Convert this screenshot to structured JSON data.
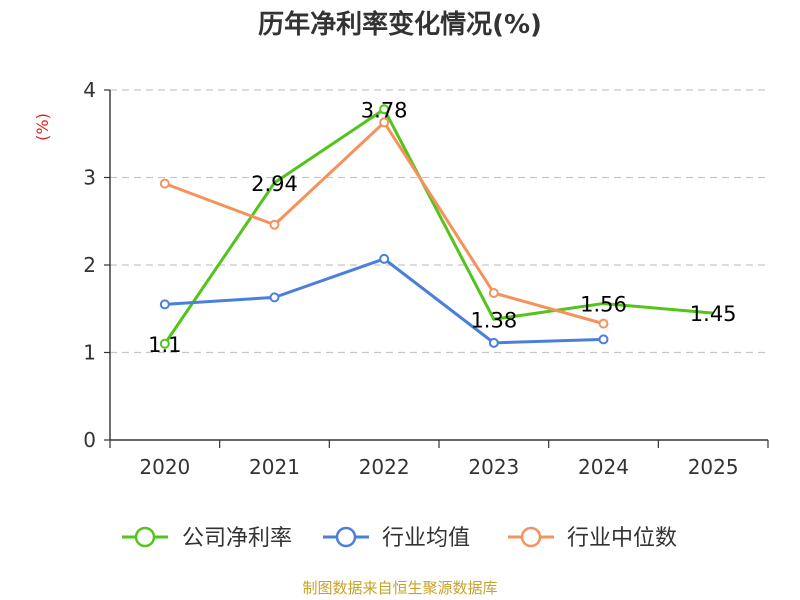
{
  "chart_data": {
    "type": "line",
    "title": "历年净利率变化情况(%)",
    "ylabel": "(%)",
    "categories": [
      "2020",
      "2021",
      "2022",
      "2023",
      "2024",
      "2025"
    ],
    "ylim": [
      0,
      4
    ],
    "yticks": [
      "0",
      "1",
      "2",
      "3",
      "4"
    ],
    "grid": true,
    "series": [
      {
        "name": "公司净利率",
        "color": "#52c41a",
        "values": [
          1.1,
          2.94,
          3.78,
          1.38,
          1.56,
          1.45
        ],
        "labels": [
          "1.1",
          "2.94",
          "3.78",
          "1.38",
          "1.56",
          "1.45"
        ],
        "markers": [
          true,
          false,
          true,
          false,
          false,
          false
        ]
      },
      {
        "name": "行业均值",
        "color": "#4a7fdb",
        "values": [
          1.55,
          1.63,
          2.07,
          1.11,
          1.15,
          null
        ],
        "markers": [
          true,
          true,
          true,
          true,
          true,
          false
        ]
      },
      {
        "name": "行业中位数",
        "color": "#f5925c",
        "values": [
          2.93,
          2.46,
          3.63,
          1.68,
          1.33,
          null
        ],
        "markers": [
          true,
          true,
          true,
          true,
          true,
          false
        ]
      }
    ],
    "legend_position": "bottom"
  },
  "source": "制图数据来自恒生聚源数据库"
}
